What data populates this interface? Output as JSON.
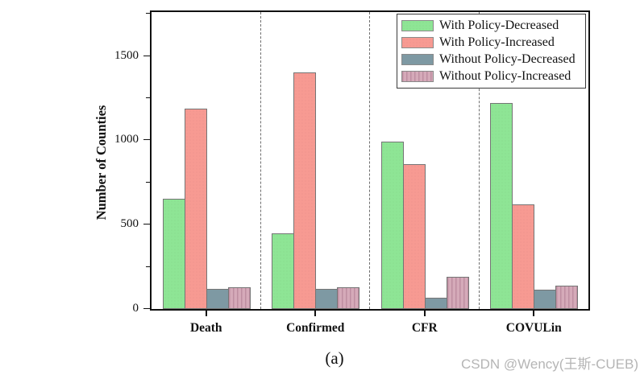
{
  "figure": {
    "caption": "(a)",
    "watermark": "CSDN @Wency(王斯-CUEB)"
  },
  "chart_data": {
    "type": "bar",
    "title": "",
    "ylabel": "Number of Counties",
    "xlabel": "",
    "categories": [
      "Death",
      "Confirmed",
      "CFR",
      "COVULin"
    ],
    "series": [
      {
        "name": "With Policy-Decreased",
        "color": "#8ee595",
        "pattern": "dots",
        "values": [
          655,
          450,
          990,
          1220
        ]
      },
      {
        "name": "With Policy-Increased",
        "color": "#f79a92",
        "pattern": "dots",
        "values": [
          1190,
          1400,
          860,
          620
        ]
      },
      {
        "name": "Without Policy-Decreased",
        "color": "#7e99a3",
        "pattern": "none",
        "values": [
          120,
          120,
          65,
          115
        ]
      },
      {
        "name": "Without Policy-Increased",
        "color": "#d5aab9",
        "pattern": "vlines",
        "values": [
          130,
          130,
          190,
          140
        ]
      }
    ],
    "ylim": [
      0,
      1760
    ],
    "yticks": [
      0,
      500,
      1000,
      1500
    ],
    "minor_tick_step": 250,
    "legend_position": "top-right",
    "grid": false,
    "group_separators": "dashed",
    "bar_edge_color": "#757575"
  }
}
